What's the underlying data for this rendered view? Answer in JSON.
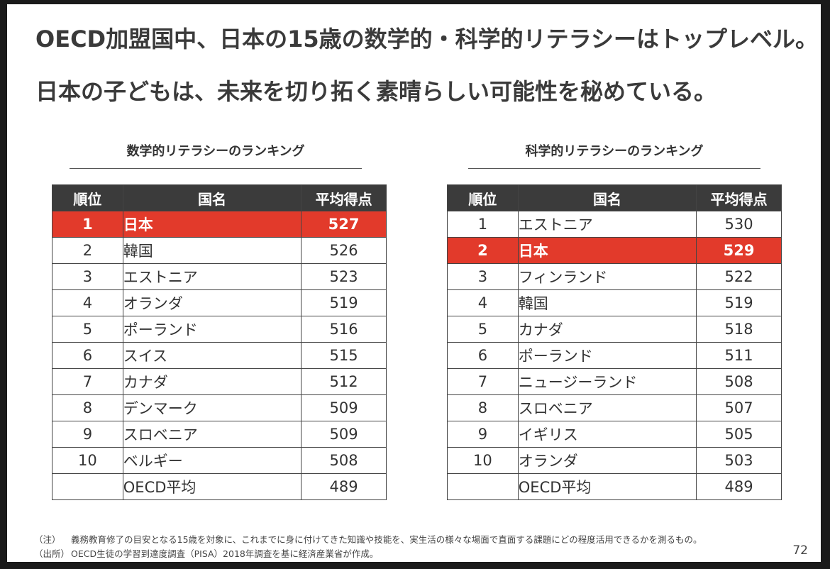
{
  "headline": [
    "OECD加盟国中、日本の15歳の数学的・科学的リテラシーはトップレベル。",
    "日本の子どもは、未来を切り拓く素晴らしい可能性を秘めている。"
  ],
  "tables": {
    "math": {
      "title": "数学的リテラシーのランキング",
      "headers": [
        "順位",
        "国名",
        "平均得点"
      ],
      "rows": [
        {
          "rank": "1",
          "country": "日本",
          "score": "527",
          "highlight": true
        },
        {
          "rank": "2",
          "country": "韓国",
          "score": "526"
        },
        {
          "rank": "3",
          "country": "エストニア",
          "score": "523"
        },
        {
          "rank": "4",
          "country": "オランダ",
          "score": "519"
        },
        {
          "rank": "5",
          "country": "ポーランド",
          "score": "516"
        },
        {
          "rank": "6",
          "country": "スイス",
          "score": "515"
        },
        {
          "rank": "7",
          "country": "カナダ",
          "score": "512"
        },
        {
          "rank": "8",
          "country": "デンマーク",
          "score": "509"
        },
        {
          "rank": "9",
          "country": "スロベニア",
          "score": "509"
        },
        {
          "rank": "10",
          "country": "ベルギー",
          "score": "508"
        },
        {
          "rank": "",
          "country": "OECD平均",
          "score": "489"
        }
      ]
    },
    "science": {
      "title": "科学的リテラシーのランキング",
      "headers": [
        "順位",
        "国名",
        "平均得点"
      ],
      "rows": [
        {
          "rank": "1",
          "country": "エストニア",
          "score": "530"
        },
        {
          "rank": "2",
          "country": "日本",
          "score": "529",
          "highlight": true
        },
        {
          "rank": "3",
          "country": "フィンランド",
          "score": "522"
        },
        {
          "rank": "4",
          "country": "韓国",
          "score": "519"
        },
        {
          "rank": "5",
          "country": "カナダ",
          "score": "518"
        },
        {
          "rank": "6",
          "country": "ポーランド",
          "score": "511"
        },
        {
          "rank": "7",
          "country": "ニュージーランド",
          "score": "508"
        },
        {
          "rank": "8",
          "country": "スロベニア",
          "score": "507"
        },
        {
          "rank": "9",
          "country": "イギリス",
          "score": "505"
        },
        {
          "rank": "10",
          "country": "オランダ",
          "score": "503"
        },
        {
          "rank": "",
          "country": "OECD平均",
          "score": "489"
        }
      ]
    }
  },
  "footnotes": [
    {
      "label": "（注）",
      "text": "義務教育修了の目安となる15歳を対象に、これまでに身に付けてきた知識や技能を、実生活の様々な場面で直面する課題にどの程度活用できるかを測るもの。"
    },
    {
      "label": "（出所）",
      "text": "OECD生徒の学習到達度調査（PISA）2018年調査を基に経済産業省が作成。"
    }
  ],
  "page_number": "72",
  "colors": {
    "highlight": "#e23a2b",
    "header": "#3b3b3b"
  }
}
